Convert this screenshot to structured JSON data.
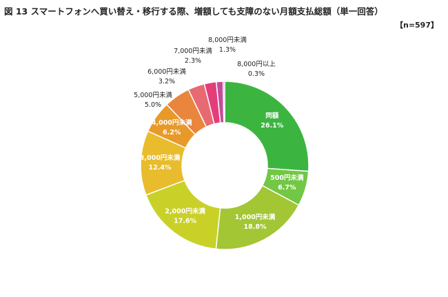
{
  "figure": {
    "title": "図 13  スマートフォンへ買い替え・移行する際、増額しても支障のない月額支払総額（単一回答）",
    "sample": "【n=597】"
  },
  "chart_data": {
    "type": "donut",
    "unit": "%",
    "start_angle_deg": 0,
    "direction": "clockwise",
    "slices": [
      {
        "label": "同額",
        "value": 26.1,
        "value_text": "26.1%",
        "color": "#3cb540",
        "label_position": "inside"
      },
      {
        "label": "500円未満",
        "value": 6.7,
        "value_text": "6.7%",
        "color": "#72c744",
        "label_position": "inside"
      },
      {
        "label": "1,000円未満",
        "value": 18.8,
        "value_text": "18.8%",
        "color": "#a3c634",
        "label_position": "inside"
      },
      {
        "label": "2,000円未満",
        "value": 17.6,
        "value_text": "17.6%",
        "color": "#c9d128",
        "label_position": "inside"
      },
      {
        "label": "3,000円未満",
        "value": 12.4,
        "value_text": "12.4%",
        "color": "#e8bc2c",
        "label_position": "inside"
      },
      {
        "label": "4,000円未満",
        "value": 6.2,
        "value_text": "6.2%",
        "color": "#e79a2a",
        "label_position": "inside"
      },
      {
        "label": "5,000円未満",
        "value": 5.0,
        "value_text": "5.0%",
        "color": "#e9853c",
        "label_position": "outside"
      },
      {
        "label": "6,000円未満",
        "value": 3.2,
        "value_text": "3.2%",
        "color": "#e76a72",
        "label_position": "outside"
      },
      {
        "label": "7,000円未満",
        "value": 2.3,
        "value_text": "2.3%",
        "color": "#e43e7a",
        "label_position": "outside"
      },
      {
        "label": "8,000円未満",
        "value": 1.3,
        "value_text": "1.3%",
        "color": "#c24e9a",
        "label_position": "outside"
      },
      {
        "label": "8,000円以上",
        "value": 0.3,
        "value_text": "0.3%",
        "color": "#9b6ac8",
        "label_position": "outside"
      }
    ]
  }
}
